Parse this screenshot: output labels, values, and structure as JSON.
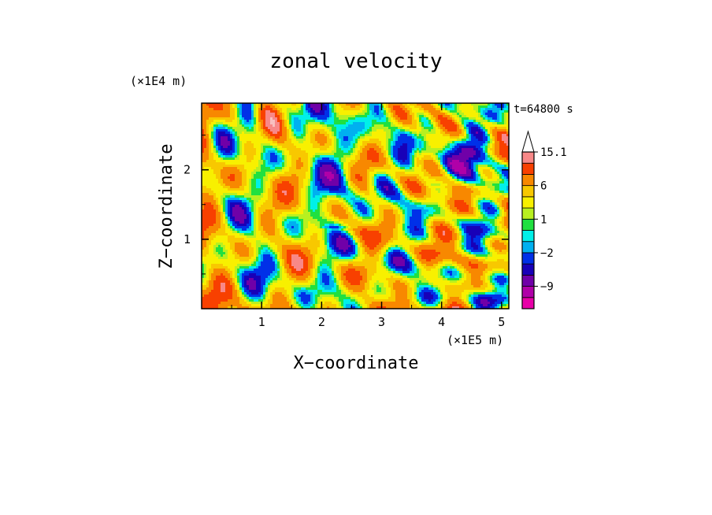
{
  "chart_data": {
    "type": "heatmap",
    "title": "zonal velocity",
    "xlabel": "X−coordinate",
    "ylabel": "Z−coordinate",
    "x_unit": "(×1E5 m)",
    "y_unit": "(×1E4 m)",
    "time_label": "t=64800 s",
    "xlim": [
      0,
      5.12
    ],
    "ylim": [
      0,
      2.96
    ],
    "x_ticks": [
      1,
      2,
      3,
      4,
      5
    ],
    "y_ticks": [
      1,
      2
    ],
    "x_tick_labels": [
      "1",
      "2",
      "3",
      "4",
      "5"
    ],
    "y_tick_labels": [
      "1",
      "2"
    ],
    "colorbar": {
      "labels": [
        {
          "value": 15.1,
          "text": "15.1"
        },
        {
          "value": 6,
          "text": "6"
        },
        {
          "value": 1,
          "text": "1"
        },
        {
          "value": -2,
          "text": "−2"
        },
        {
          "value": -9,
          "text": "−9"
        }
      ],
      "levels": [
        -15,
        -12,
        -9,
        -6,
        -4,
        -2,
        -1,
        0,
        1,
        2,
        4,
        6,
        9,
        12,
        15.1
      ],
      "colors": [
        "#e800a8",
        "#b000a8",
        "#7000a8",
        "#1800b8",
        "#0030e8",
        "#00b0f0",
        "#00f0e8",
        "#20e040",
        "#b8f020",
        "#f8f000",
        "#f8c800",
        "#f88800",
        "#f84000",
        "#f88888",
        "#f8c0c0"
      ],
      "extend_top_color": "#ffffff"
    }
  }
}
